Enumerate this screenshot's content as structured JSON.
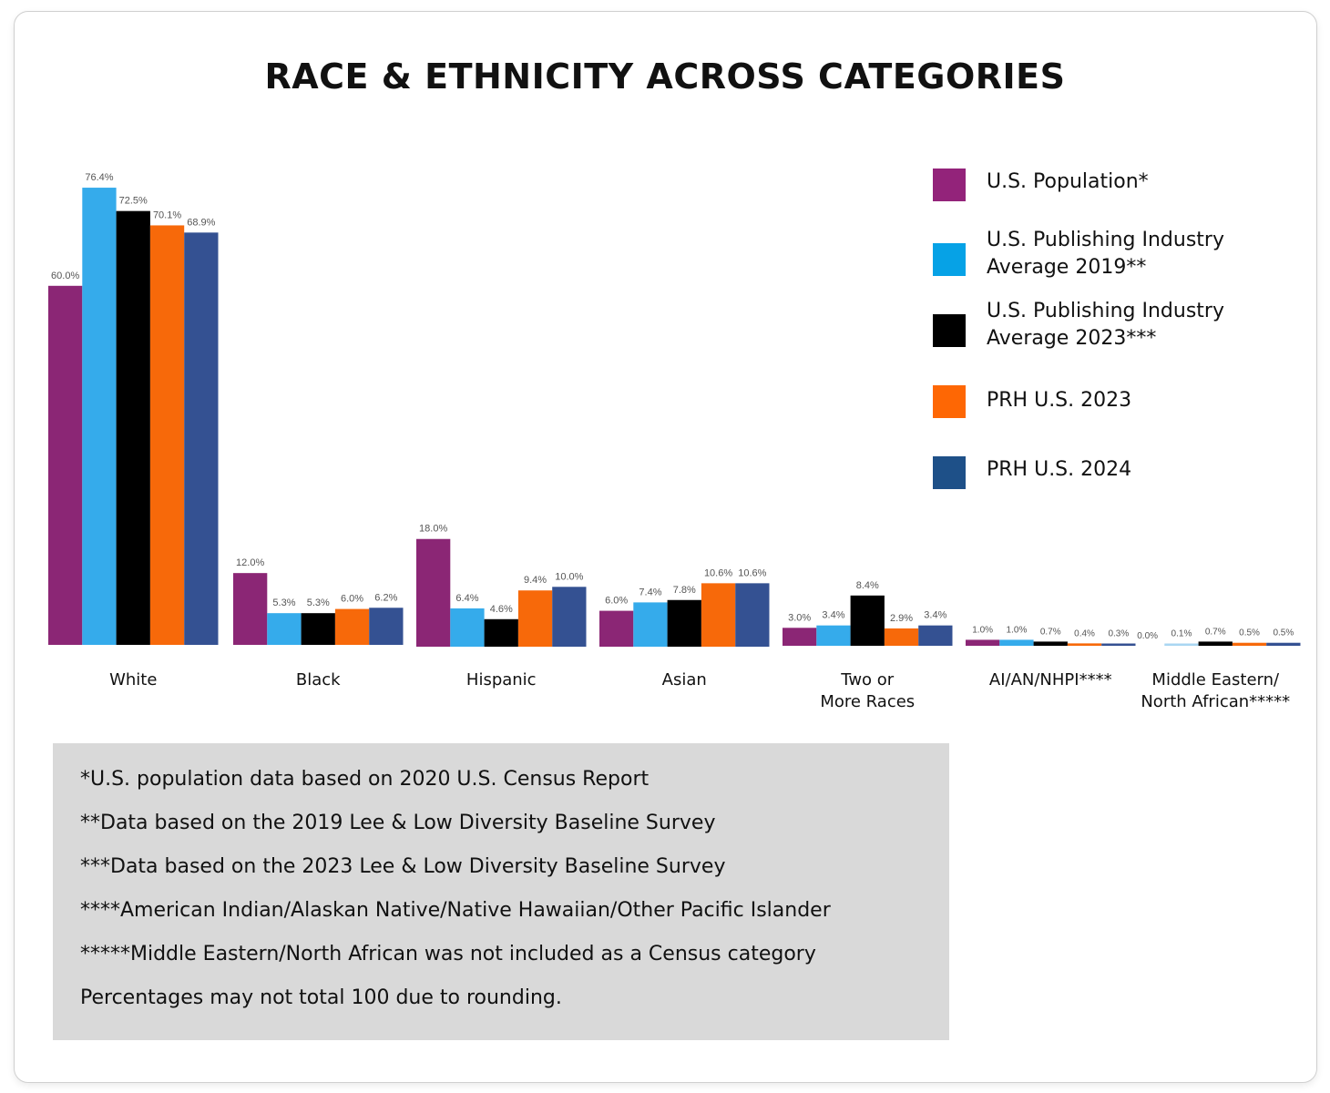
{
  "chart_data": {
    "type": "bar",
    "title": "RACE & ETHNICITY ACROSS CATEGORIES",
    "xlabel": "",
    "ylabel": "",
    "ylim": [
      0,
      80
    ],
    "grid": false,
    "legend_position": "top-right",
    "value_format": "percent-1dp",
    "categories": [
      "White",
      "Black",
      "Hispanic",
      "Asian",
      "Two or More Races",
      "AI/AN/NHPI****",
      "Middle Eastern/ North African*****"
    ],
    "category_lines": [
      [
        "White"
      ],
      [
        "Black"
      ],
      [
        "Hispanic"
      ],
      [
        "Asian"
      ],
      [
        "Two or",
        "More Races"
      ],
      [
        "AI/AN/NHPI****"
      ],
      [
        "Middle Eastern/",
        "North African*****"
      ]
    ],
    "series": [
      {
        "name": "U.S. Population*",
        "color": "#8b2675",
        "values": [
          60.0,
          12.0,
          18.0,
          6.0,
          3.0,
          1.0,
          0.0
        ]
      },
      {
        "name": "U.S. Publishing Industry Average 2019**",
        "color": "#35abeb",
        "values": [
          76.4,
          5.3,
          6.4,
          7.4,
          3.4,
          1.0,
          0.1
        ]
      },
      {
        "name": "U.S. Publishing Industry Average 2023***",
        "color": "#000000",
        "values": [
          72.5,
          5.3,
          4.6,
          7.8,
          8.4,
          0.7,
          0.7
        ]
      },
      {
        "name": "PRH U.S. 2023",
        "color": "#f7690a",
        "values": [
          70.1,
          6.0,
          9.4,
          10.6,
          2.9,
          0.4,
          0.5
        ]
      },
      {
        "name": "PRH U.S. 2024",
        "color": "#345192",
        "values": [
          68.9,
          6.2,
          10.0,
          10.6,
          3.4,
          0.3,
          0.5
        ]
      }
    ]
  },
  "legend": {
    "items": [
      {
        "label": "U.S. Population*",
        "color": "#93237a"
      },
      {
        "label": "U.S. Publishing Industry Average 2019**",
        "color": "#06a2e6"
      },
      {
        "label": "U.S. Publishing Industry Average 2023***",
        "color": "#000000"
      },
      {
        "label": "PRH U.S. 2023",
        "color": "#fe6704"
      },
      {
        "label": "PRH U.S. 2024",
        "color": "#1e5088"
      }
    ]
  },
  "notes": [
    "*U.S. population data based on 2020 U.S. Census Report",
    "**Data based on the 2019 Lee & Low Diversity Baseline Survey",
    "***Data based on the 2023 Lee & Low Diversity Baseline Survey",
    "****American Indian/Alaskan Native/Native Hawaiian/Other Pacific Islander",
    "*****Middle Eastern/North African was not included as a Census category",
    "Percentages may not total 100 due to rounding."
  ]
}
